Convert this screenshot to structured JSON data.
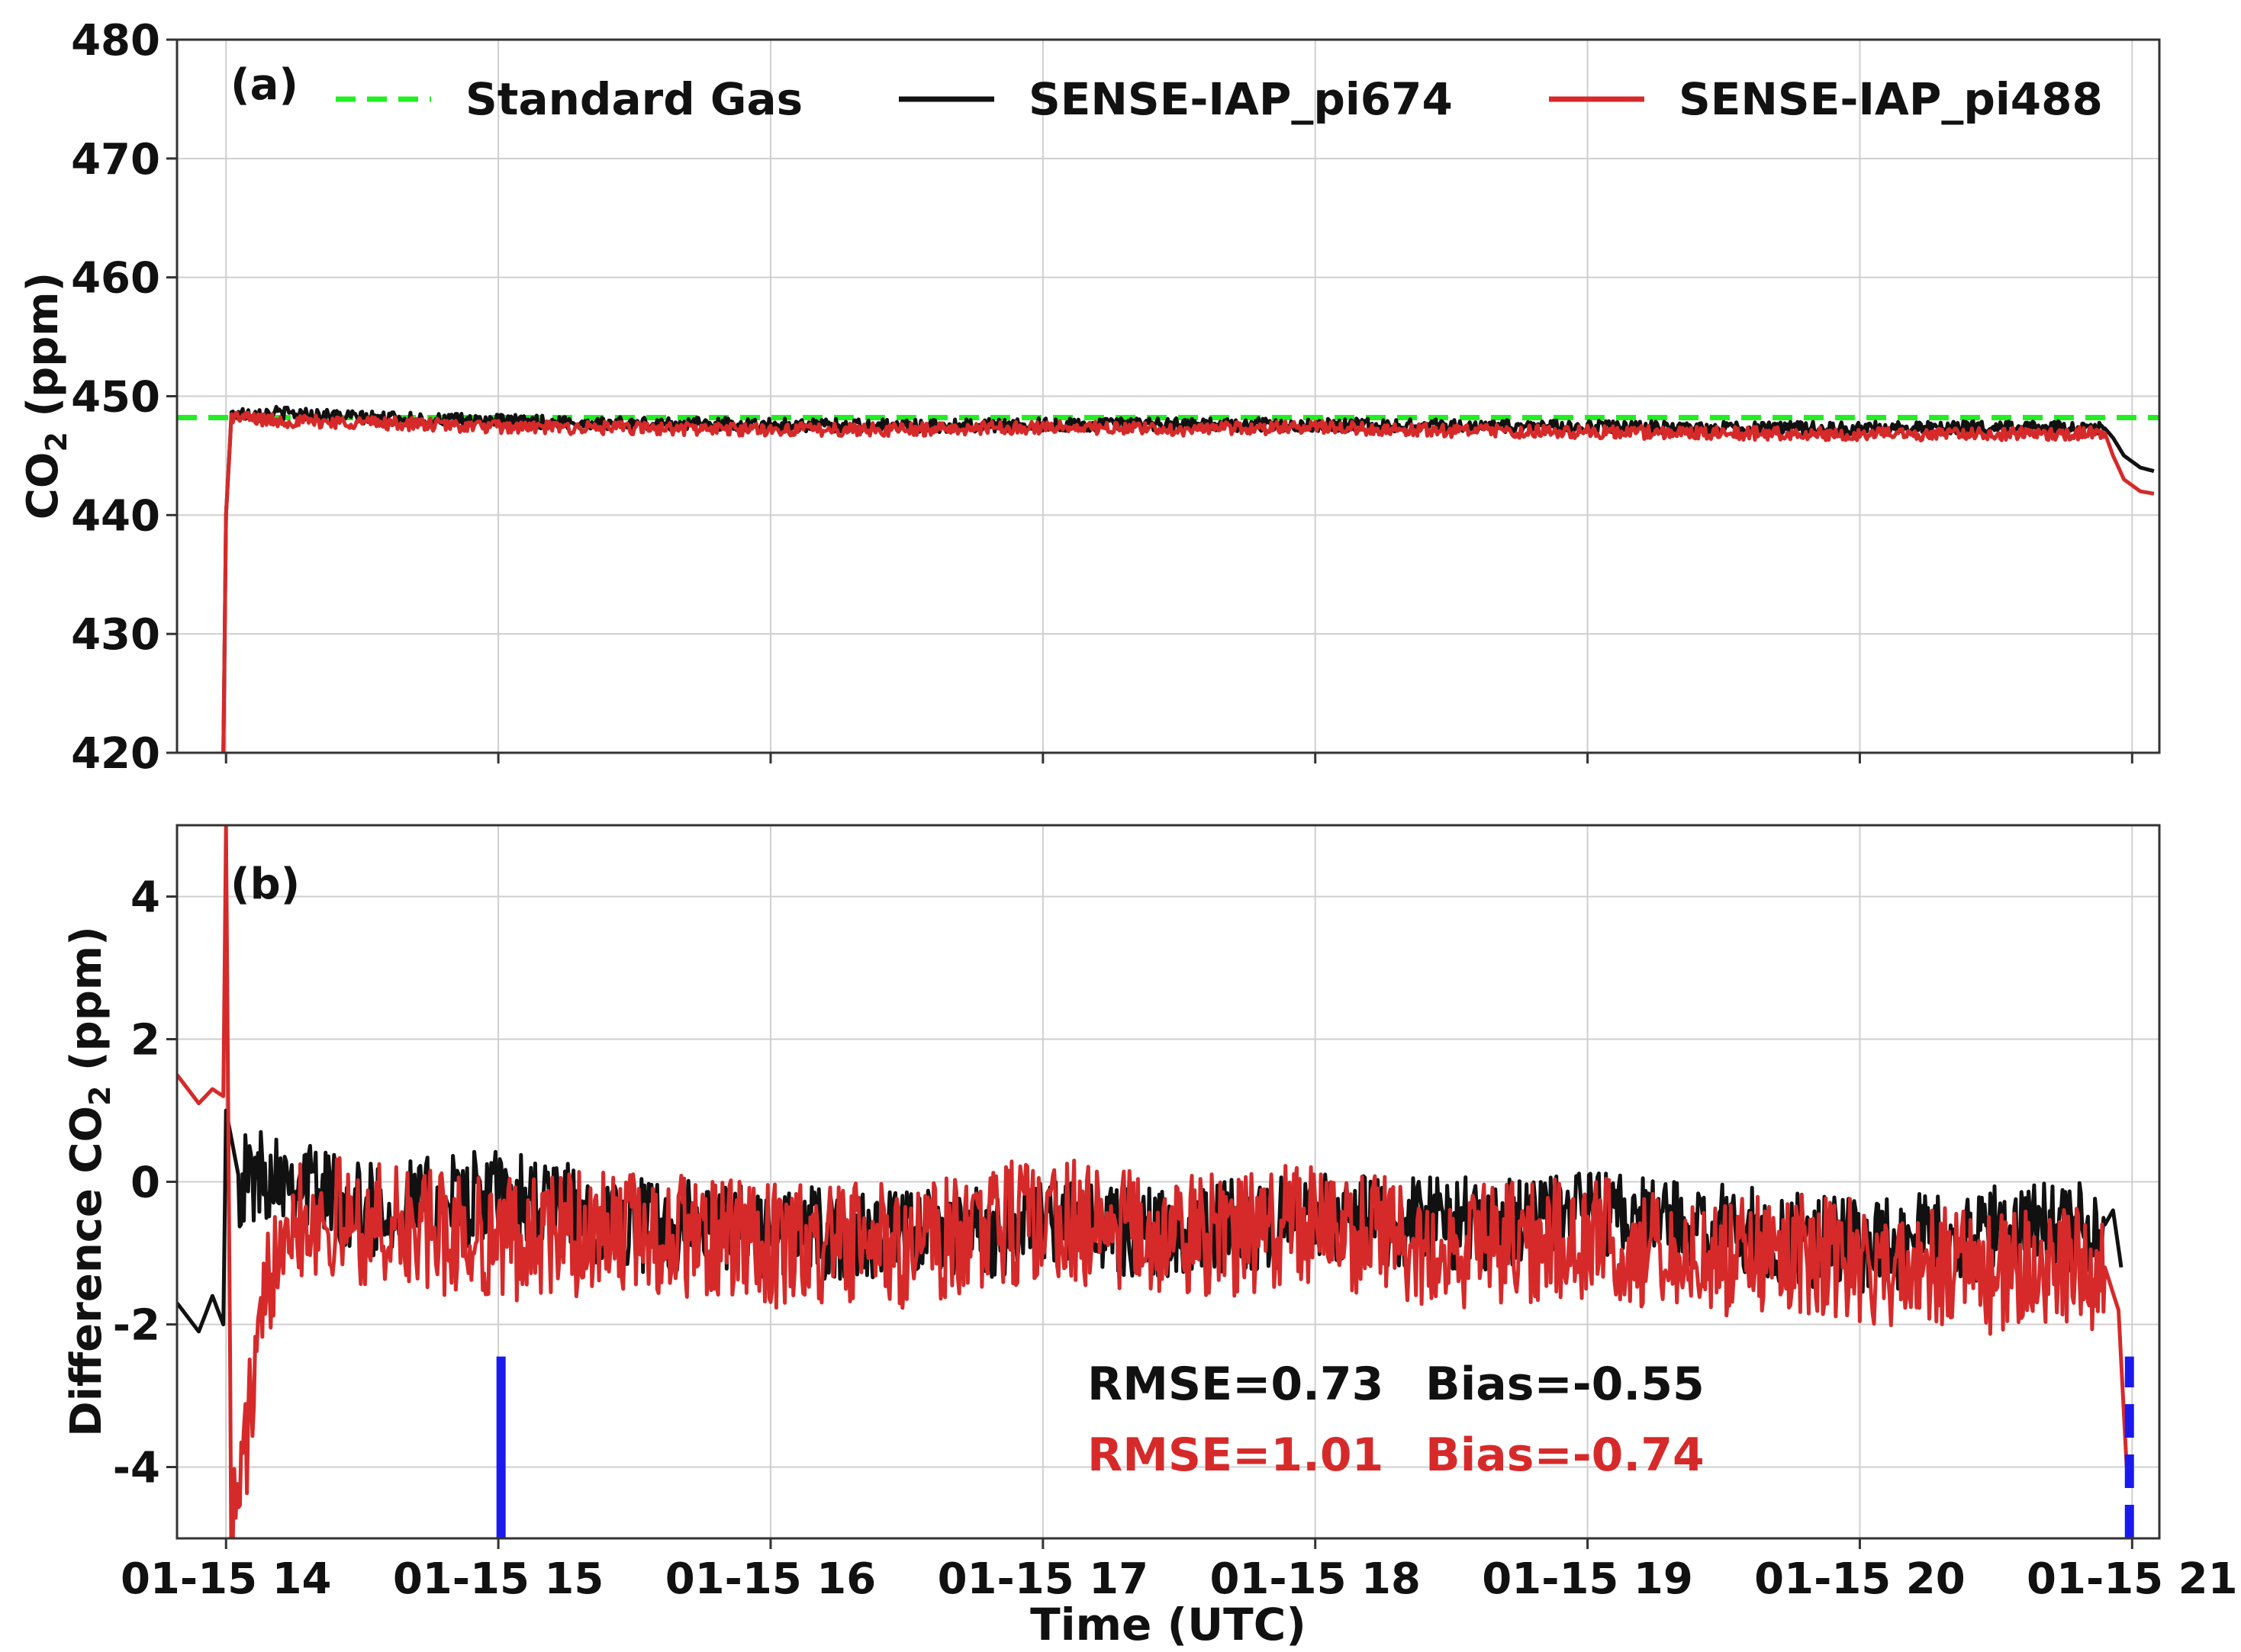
{
  "chart_data": [
    {
      "type": "line",
      "panel_label": "(a)",
      "ylabel_main": "CO",
      "ylabel_sub": "2",
      "ylabel_rest": " (ppm)",
      "ylim": [
        420,
        480
      ],
      "yticks": [
        420,
        430,
        440,
        450,
        460,
        470,
        480
      ],
      "xlim": [
        13.82,
        21.1
      ],
      "xticks": [
        14,
        15,
        16,
        17,
        18,
        19,
        20,
        21
      ],
      "grid": true,
      "legend_position": "top",
      "legend": [
        {
          "name": "Standard Gas",
          "color": "#22ee22",
          "style": "dashed"
        },
        {
          "name": "SENSE-IAP_pi674",
          "color": "#111111",
          "style": "solid"
        },
        {
          "name": "SENSE-IAP_pi488",
          "color": "#d62a2a",
          "style": "solid"
        }
      ],
      "series": [
        {
          "name": "Standard Gas",
          "color": "#22ee22",
          "style": "dashed",
          "x": [
            13.82,
            21.1
          ],
          "y": [
            448.2,
            448.2
          ]
        },
        {
          "name": "SENSE-IAP_pi674",
          "color": "#111111",
          "style": "solid",
          "x": [
            13.99,
            14.0,
            14.02,
            14.2,
            14.5,
            15.0,
            15.5,
            16.0,
            16.5,
            17.0,
            17.5,
            18.0,
            18.5,
            19.0,
            19.5,
            20.0,
            20.5,
            20.9,
            20.93,
            20.97,
            21.03,
            21.08
          ],
          "y": [
            420.0,
            440.0,
            448.5,
            448.6,
            448.2,
            447.9,
            447.7,
            447.6,
            447.5,
            447.6,
            447.6,
            447.6,
            447.5,
            447.4,
            447.3,
            447.3,
            447.4,
            447.3,
            446.5,
            445.0,
            444.0,
            443.7
          ]
        },
        {
          "name": "SENSE-IAP_pi488",
          "color": "#d62a2a",
          "style": "solid",
          "x": [
            13.99,
            14.0,
            14.02,
            14.2,
            14.5,
            15.0,
            15.5,
            16.0,
            16.5,
            17.0,
            17.5,
            18.0,
            18.5,
            19.0,
            19.5,
            20.0,
            20.5,
            20.9,
            20.93,
            20.97,
            21.03,
            21.08
          ],
          "y": [
            420.0,
            440.0,
            448.3,
            447.9,
            447.8,
            447.4,
            447.3,
            447.2,
            447.2,
            447.4,
            447.2,
            447.4,
            447.1,
            447.0,
            446.9,
            446.8,
            446.8,
            446.9,
            445.0,
            443.0,
            442.0,
            441.8
          ]
        }
      ]
    },
    {
      "type": "line",
      "panel_label": "(b)",
      "ylabel_main": "Difference CO",
      "ylabel_sub": "2",
      "ylabel_rest": " (ppm)",
      "xlabel": "Time (UTC)",
      "ylim": [
        -5,
        5
      ],
      "yticks": [
        -4,
        -2,
        0,
        2,
        4
      ],
      "xlim": [
        13.82,
        21.1
      ],
      "xticks": [
        14,
        15,
        16,
        17,
        18,
        19,
        20,
        21
      ],
      "xticklabels": [
        "01-15 14",
        "01-15 15",
        "01-15 16",
        "01-15 17",
        "01-15 18",
        "01-15 19",
        "01-15 20",
        "01-15 21"
      ],
      "grid": true,
      "series": [
        {
          "name": "SENSE-IAP_pi674",
          "color": "#111111",
          "style": "solid",
          "x": [
            13.82,
            13.9,
            13.95,
            13.99,
            14.0,
            14.05,
            14.2,
            14.5,
            15.0,
            15.5,
            16.0,
            16.5,
            17.0,
            17.5,
            18.0,
            18.5,
            19.0,
            19.5,
            20.0,
            20.5,
            20.9,
            20.93,
            20.96
          ],
          "y": [
            -1.7,
            -2.1,
            -1.6,
            -2.0,
            1.0,
            0.0,
            0.2,
            -0.4,
            -0.2,
            -0.6,
            -0.7,
            -0.8,
            -0.6,
            -0.7,
            -0.5,
            -0.6,
            -0.5,
            -0.7,
            -0.9,
            -0.7,
            -0.6,
            -0.4,
            -1.2
          ]
        },
        {
          "name": "SENSE-IAP_pi488",
          "color": "#d62a2a",
          "style": "solid",
          "x": [
            13.82,
            13.9,
            13.95,
            13.99,
            14.0,
            14.02,
            14.2,
            14.5,
            15.0,
            15.5,
            16.0,
            16.5,
            17.0,
            17.5,
            18.0,
            18.5,
            19.0,
            19.5,
            20.0,
            20.5,
            20.9,
            20.95,
            20.98
          ],
          "y": [
            1.5,
            1.1,
            1.3,
            1.2,
            5.0,
            -5.0,
            -0.4,
            -0.6,
            -0.8,
            -0.7,
            -0.9,
            -0.9,
            -0.5,
            -0.8,
            -0.6,
            -0.9,
            -0.8,
            -1.0,
            -1.1,
            -1.3,
            -1.2,
            -1.8,
            -4.0
          ]
        }
      ],
      "markers": [
        {
          "x": 15.01,
          "y": [
            -5,
            -2.45
          ],
          "color": "#1a1aee",
          "style": "solid"
        },
        {
          "x": 20.99,
          "y": [
            -5,
            -2.45
          ],
          "color": "#1a1aee",
          "style": "dashed"
        }
      ],
      "annotations": [
        {
          "text": "RMSE=0.73",
          "color": "#111111"
        },
        {
          "text": "Bias=-0.55",
          "color": "#111111"
        },
        {
          "text": "RMSE=1.01",
          "color": "#d62a2a"
        },
        {
          "text": "Bias=-0.74",
          "color": "#d62a2a"
        }
      ]
    }
  ]
}
